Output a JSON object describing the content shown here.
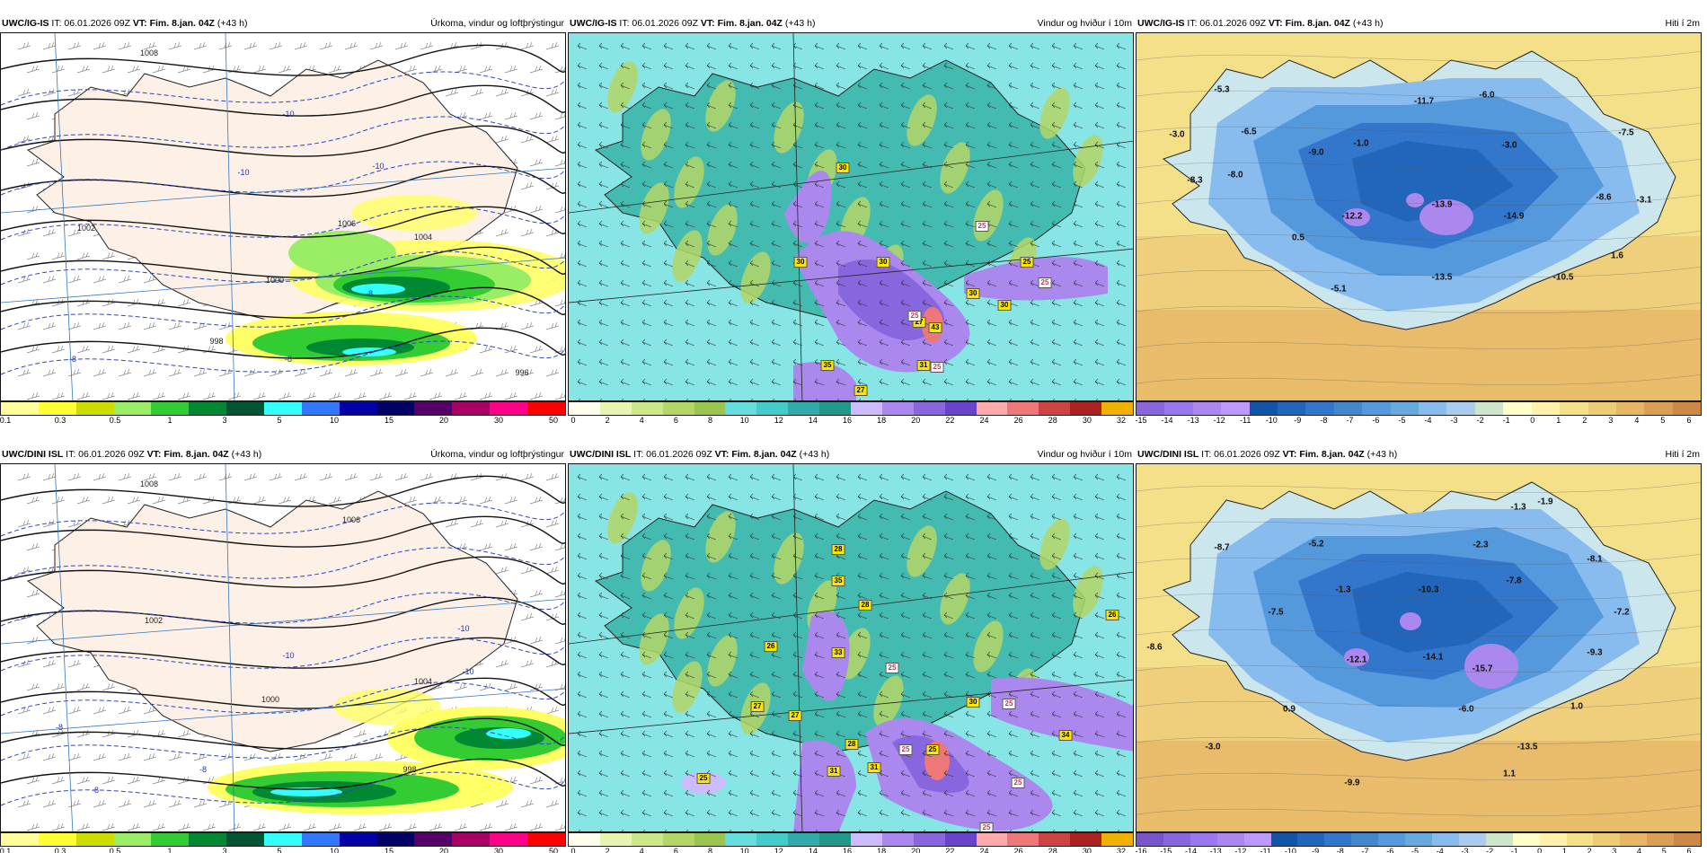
{
  "panels": [
    {
      "id": "p1",
      "model": "UWC/IG-IS",
      "init": "IT: 06.01.2026 09Z",
      "valid_label": "VT:",
      "valid": "Fim. 8.jan. 04Z",
      "lead": "(+43 h)",
      "field": "Úrkoma, vindur og loftþrýstingur",
      "cb_colors": [
        "#ffff99",
        "#ffff33",
        "#ccdd00",
        "#99ee66",
        "#33cc33",
        "#008833",
        "#005533",
        "#33ffff",
        "#3377ff",
        "#0000aa",
        "#000066",
        "#550066",
        "#aa0066",
        "#ff0088",
        "#ff0000"
      ],
      "cb_labels": [
        "0.1",
        "0.3",
        "0.5",
        "1",
        "3",
        "5",
        "10",
        "15",
        "20",
        "30",
        "50"
      ],
      "map_labels": [
        {
          "t": "1008"
        },
        {
          "t": "1006"
        },
        {
          "t": "1004"
        },
        {
          "t": "1002"
        },
        {
          "t": "1000"
        },
        {
          "t": "998"
        },
        {
          "t": "996"
        },
        {
          "t": "-10"
        },
        {
          "t": "-10"
        },
        {
          "t": "-10"
        },
        {
          "t": "-8"
        },
        {
          "t": "-8"
        },
        {
          "t": "-8"
        }
      ]
    },
    {
      "id": "p2",
      "model": "UWC/IG-IS",
      "init": "IT: 06.01.2026 09Z",
      "valid_label": "VT:",
      "valid": "Fim. 8.jan. 04Z",
      "lead": "(+43 h)",
      "field": "Vindur og hviður í 10m",
      "cb_colors": [
        "#ffffee",
        "#e6f5b0",
        "#cce68a",
        "#b3d666",
        "#99c44d",
        "#66dddd",
        "#44cccc",
        "#33aaaa",
        "#229988",
        "#ccbbff",
        "#aa88ee",
        "#8866dd",
        "#6644cc",
        "#ffaaaa",
        "#ee7777",
        "#cc4444",
        "#aa2222",
        "#f0b000"
      ],
      "cb_labels": [
        "0",
        "2",
        "4",
        "6",
        "8",
        "10",
        "12",
        "14",
        "16",
        "18",
        "20",
        "22",
        "24",
        "26",
        "28",
        "30",
        "32"
      ],
      "badges": [
        {
          "t": "30"
        },
        {
          "t": "30"
        },
        {
          "t": "30"
        },
        {
          "t": "30"
        },
        {
          "t": "25"
        },
        {
          "t": "27"
        },
        {
          "t": "43"
        },
        {
          "t": "30"
        },
        {
          "t": "35"
        },
        {
          "t": "31"
        },
        {
          "t": "27"
        }
      ],
      "alt_badges": [
        {
          "t": "25"
        },
        {
          "t": "25"
        },
        {
          "t": "25"
        },
        {
          "t": "25"
        }
      ]
    },
    {
      "id": "p3",
      "model": "UWC/IG-IS",
      "init": "IT: 06.01.2026 09Z",
      "valid_label": "VT:",
      "valid": "Fim. 8.jan. 04Z",
      "lead": "(+43 h)",
      "field": "Hiti í 2m",
      "cb_colors": [
        "#8866dd",
        "#9977ee",
        "#aa88ee",
        "#bb99ff",
        "#1155aa",
        "#2266bb",
        "#3377cc",
        "#4488cc",
        "#5599dd",
        "#66aadd",
        "#88bbee",
        "#aaccee",
        "#cce6cc",
        "#ffffcc",
        "#fff2aa",
        "#f5e08a",
        "#eecb77",
        "#e6b666",
        "#d9a055",
        "#cc8844"
      ],
      "cb_labels": [
        "-15",
        "-14",
        "-13",
        "-12",
        "-11",
        "-10",
        "-9",
        "-8",
        "-7",
        "-6",
        "-5",
        "-4",
        "-3",
        "-2",
        "-1",
        "0",
        "1",
        "2",
        "3",
        "4",
        "5",
        "6"
      ],
      "temps": [
        {
          "t": "-5.3"
        },
        {
          "t": "-3.0"
        },
        {
          "t": "-6.5"
        },
        {
          "t": "-8.0"
        },
        {
          "t": "-8.3"
        },
        {
          "t": "-9.0"
        },
        {
          "t": "-1.0"
        },
        {
          "t": "-12.2"
        },
        {
          "t": "0.5"
        },
        {
          "t": "-5.1"
        },
        {
          "t": "-11.7"
        },
        {
          "t": "-13.9"
        },
        {
          "t": "-6.0"
        },
        {
          "t": "-3.0"
        },
        {
          "t": "-14.9"
        },
        {
          "t": "-13.5"
        },
        {
          "t": "-7.5"
        },
        {
          "t": "-8.6"
        },
        {
          "t": "-3.1"
        },
        {
          "t": "-10.5"
        },
        {
          "t": "1.6"
        }
      ]
    },
    {
      "id": "p4",
      "model": "UWC/DINI ISL",
      "init": "IT: 06.01.2026 09Z",
      "valid_label": "VT:",
      "valid": "Fim. 8.jan. 04Z",
      "lead": "(+43 h)",
      "field": "Úrkoma, vindur og loftþrýstingur",
      "cb_colors": [
        "#ffff99",
        "#ffff33",
        "#ccdd00",
        "#99ee66",
        "#33cc33",
        "#008833",
        "#005533",
        "#33ffff",
        "#3377ff",
        "#0000aa",
        "#000066",
        "#550066",
        "#aa0066",
        "#ff0088",
        "#ff0000"
      ],
      "cb_labels": [
        "0.1",
        "0.3",
        "0.5",
        "1",
        "3",
        "5",
        "10",
        "15",
        "20",
        "30",
        "50"
      ],
      "map_labels": [
        {
          "t": "1008"
        },
        {
          "t": "1006"
        },
        {
          "t": "1004"
        },
        {
          "t": "1002"
        },
        {
          "t": "1000"
        },
        {
          "t": "998"
        },
        {
          "t": "-10"
        },
        {
          "t": "-10"
        },
        {
          "t": "-8"
        },
        {
          "t": "-8"
        },
        {
          "t": "-8"
        },
        {
          "t": "-10"
        }
      ]
    },
    {
      "id": "p5",
      "model": "UWC/DINI ISL",
      "init": "IT: 06.01.2026 09Z",
      "valid_label": "VT:",
      "valid": "Fim. 8.jan. 04Z",
      "lead": "(+43 h)",
      "field": "Vindur og hviður í 10m",
      "cb_colors": [
        "#ffffee",
        "#e6f5b0",
        "#cce68a",
        "#b3d666",
        "#99c44d",
        "#66dddd",
        "#44cccc",
        "#33aaaa",
        "#229988",
        "#ccbbff",
        "#aa88ee",
        "#8866dd",
        "#6644cc",
        "#ffaaaa",
        "#ee7777",
        "#cc4444",
        "#aa2222",
        "#f0b000"
      ],
      "cb_labels": [
        "0",
        "2",
        "4",
        "6",
        "8",
        "10",
        "12",
        "14",
        "16",
        "18",
        "20",
        "22",
        "24",
        "26",
        "28",
        "30",
        "32"
      ],
      "badges": [
        {
          "t": "28"
        },
        {
          "t": "35"
        },
        {
          "t": "28"
        },
        {
          "t": "26"
        },
        {
          "t": "33"
        },
        {
          "t": "27"
        },
        {
          "t": "27"
        },
        {
          "t": "28"
        },
        {
          "t": "31"
        },
        {
          "t": "31"
        },
        {
          "t": "25"
        },
        {
          "t": "25"
        },
        {
          "t": "30"
        },
        {
          "t": "26"
        },
        {
          "t": "34"
        }
      ],
      "alt_badges": [
        {
          "t": "25"
        },
        {
          "t": "25"
        },
        {
          "t": "25"
        },
        {
          "t": "25"
        },
        {
          "t": "25"
        }
      ]
    },
    {
      "id": "p6",
      "model": "UWC/DINI ISL",
      "init": "IT: 06.01.2026 09Z",
      "valid_label": "VT:",
      "valid": "Fim. 8.jan. 04Z",
      "lead": "(+43 h)",
      "field": "Hiti í 2m",
      "cb_colors": [
        "#7755cc",
        "#8866dd",
        "#9977ee",
        "#aa88ee",
        "#bb99ff",
        "#1155aa",
        "#2266bb",
        "#3377cc",
        "#4488cc",
        "#5599dd",
        "#66aadd",
        "#88bbee",
        "#aaccee",
        "#cce6cc",
        "#ffffcc",
        "#fff2aa",
        "#f5e08a",
        "#eecb77",
        "#e6b666",
        "#d9a055",
        "#cc8844"
      ],
      "cb_labels": [
        "-16",
        "-15",
        "-14",
        "-13",
        "-12",
        "-11",
        "-10",
        "-9",
        "-8",
        "-7",
        "-6",
        "-5",
        "-4",
        "-3",
        "-2",
        "-1",
        "0",
        "1",
        "2",
        "3",
        "4",
        "5",
        "6"
      ],
      "temps": [
        {
          "t": "-8.7"
        },
        {
          "t": "-5.2"
        },
        {
          "t": "-8.6"
        },
        {
          "t": "-7.5"
        },
        {
          "t": "-1.3"
        },
        {
          "t": "-12.1"
        },
        {
          "t": "-10.3"
        },
        {
          "t": "-14.1"
        },
        {
          "t": "-2.3"
        },
        {
          "t": "-7.8"
        },
        {
          "t": "-1.3"
        },
        {
          "t": "-1.9"
        },
        {
          "t": "-8.1"
        },
        {
          "t": "-7.2"
        },
        {
          "t": "-9.3"
        },
        {
          "t": "-15.7"
        },
        {
          "t": "-6.0"
        },
        {
          "t": "0.9"
        },
        {
          "t": "-3.0"
        },
        {
          "t": "-9.9"
        },
        {
          "t": "-13.5"
        },
        {
          "t": "1.0"
        },
        {
          "t": "1.1"
        }
      ]
    }
  ]
}
